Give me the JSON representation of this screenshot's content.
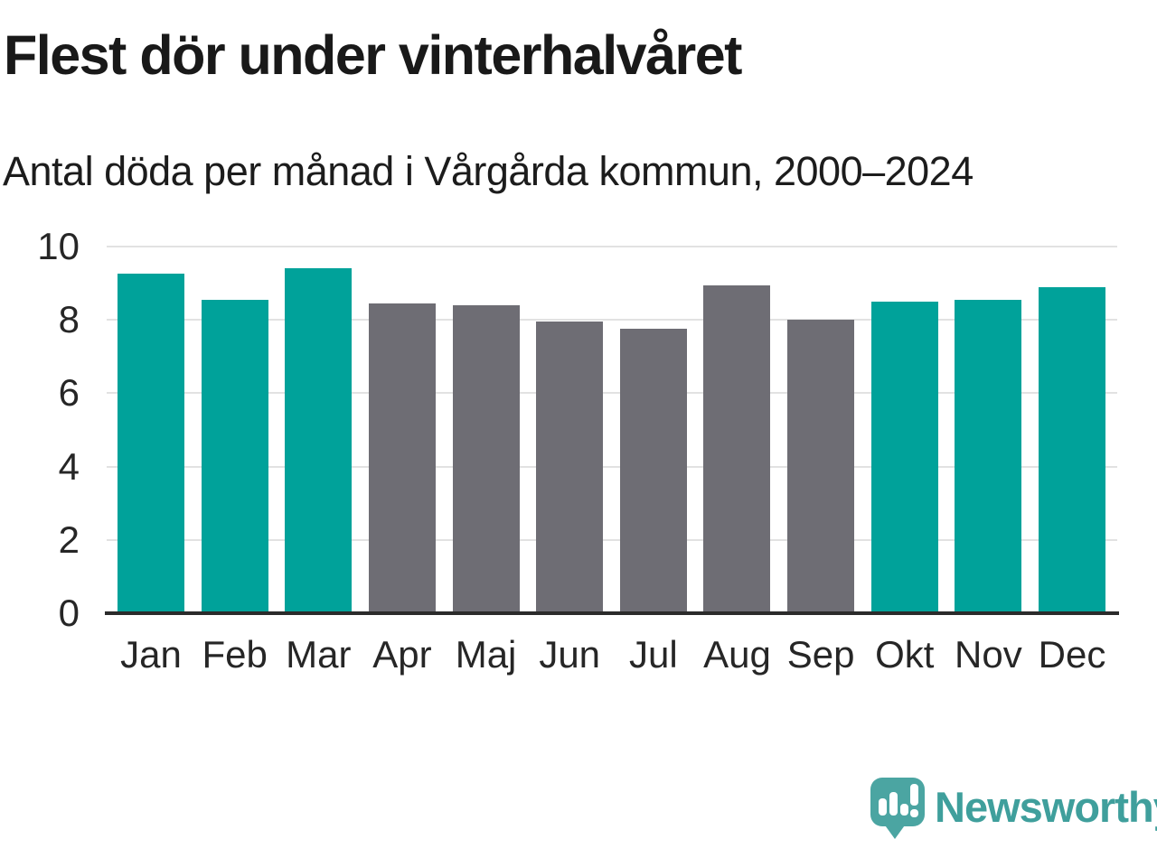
{
  "header": {
    "title": "Flest dör under vinterhalvåret",
    "subtitle": "Antal döda per månad i Vårgårda kommun, 2000–2024"
  },
  "chart_data": {
    "type": "bar",
    "title": "Flest dör under vinterhalvåret",
    "subtitle": "Antal döda per månad i Vårgårda kommun, 2000–2024",
    "categories": [
      "Jan",
      "Feb",
      "Mar",
      "Apr",
      "Maj",
      "Jun",
      "Jul",
      "Aug",
      "Sep",
      "Okt",
      "Nov",
      "Dec"
    ],
    "values": [
      9.25,
      8.55,
      9.4,
      8.45,
      8.4,
      7.95,
      7.75,
      8.95,
      8.0,
      8.5,
      8.55,
      8.9
    ],
    "highlighted": [
      true,
      true,
      true,
      false,
      false,
      false,
      false,
      false,
      false,
      true,
      true,
      true
    ],
    "colors": {
      "highlight": "#00a29a",
      "default": "#6e6d74"
    },
    "xlabel": "",
    "ylabel": "",
    "ylim": [
      0,
      10
    ],
    "yticks": [
      0,
      2,
      4,
      6,
      8,
      10
    ],
    "grid": true,
    "legend": "none"
  },
  "brand": {
    "name": "Newsworthy",
    "logo_icon": "speech-bubble-bar-chart-icon",
    "logo_color": "#4ba5a2",
    "text_color": "#3f9f9c"
  }
}
